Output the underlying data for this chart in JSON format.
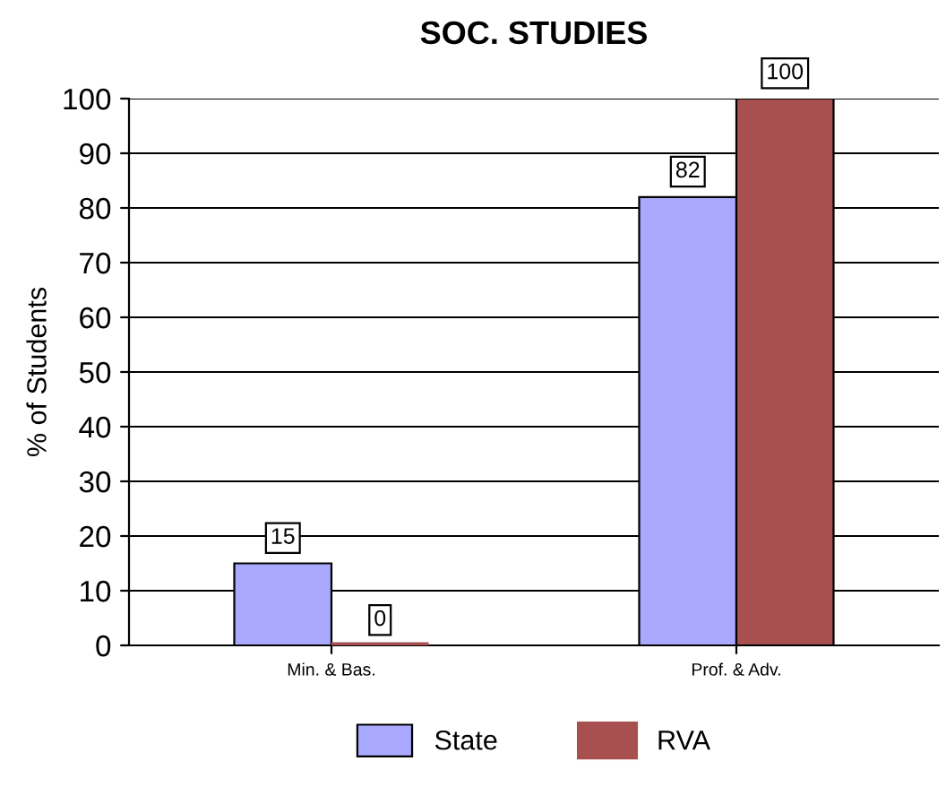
{
  "chart_data": {
    "type": "bar",
    "title": "SOC. STUDIES",
    "ylabel": "% of Students",
    "categories": [
      "Min. & Bas.",
      "Prof. & Adv."
    ],
    "series": [
      {
        "name": "State",
        "color": "#a9a9ff",
        "values": [
          15,
          82
        ]
      },
      {
        "name": "RVA",
        "color": "#a85050",
        "values": [
          0,
          100
        ]
      }
    ],
    "ylim": [
      0,
      100
    ],
    "yticks": [
      0,
      10,
      20,
      30,
      40,
      50,
      60,
      70,
      80,
      90,
      100
    ],
    "grid": "y",
    "legend": "bottom",
    "data_labels": true
  }
}
